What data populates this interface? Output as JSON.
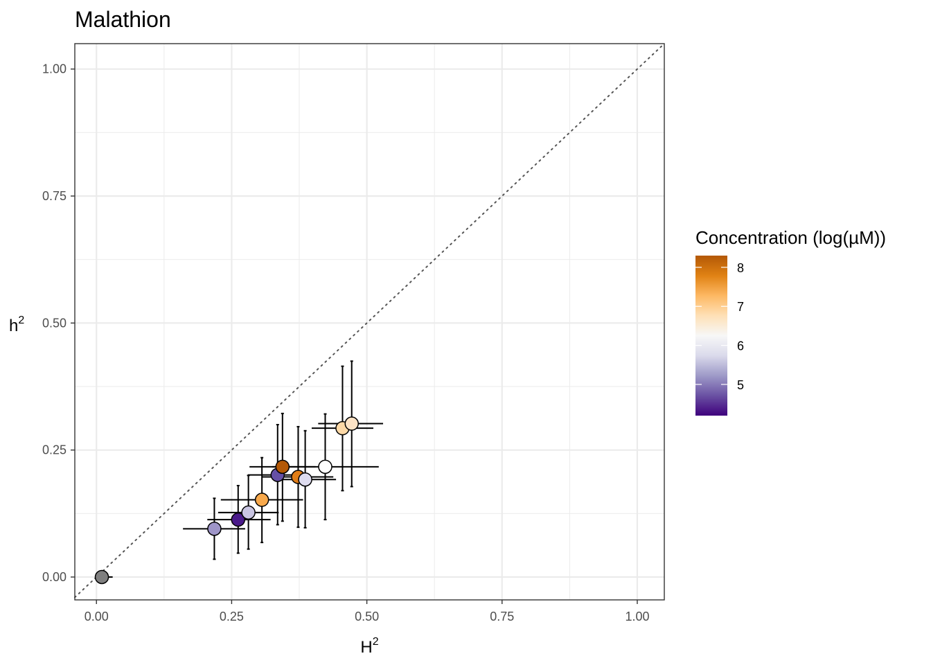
{
  "chart_data": {
    "type": "scatter",
    "title": "Malathion",
    "xlabel": "H",
    "xlabel_sup": "2",
    "ylabel": "h",
    "ylabel_sup": "2",
    "xlim": [
      -0.04,
      1.05
    ],
    "ylim": [
      -0.045,
      1.05
    ],
    "x_ticks": [
      0.0,
      0.25,
      0.5,
      0.75,
      1.0
    ],
    "x_tick_labels": [
      "0.00",
      "0.25",
      "0.50",
      "0.75",
      "1.00"
    ],
    "y_ticks": [
      0.0,
      0.25,
      0.5,
      0.75,
      1.0
    ],
    "y_tick_labels": [
      "0.00",
      "0.25",
      "0.50",
      "0.75",
      "1.00"
    ],
    "grid": true,
    "reference_line": "y = x (dotted)",
    "legend": {
      "title": "Concentration (log(µM))",
      "placement": "right",
      "type": "colorbar",
      "range": [
        4.2,
        8.3
      ],
      "ticks": [
        5,
        6,
        7,
        8
      ],
      "tick_labels": [
        "5",
        "6",
        "7",
        "8"
      ],
      "colors": [
        "#3f007d",
        "#6a51a3",
        "#9e9ac8",
        "#dadaeb",
        "#f7f7f7",
        "#fee0b6",
        "#fdb863",
        "#e08214",
        "#b35806"
      ]
    },
    "points": [
      {
        "H2": 0.01,
        "h2": 0.0,
        "H2_lo": 0.0,
        "H2_hi": 0.03,
        "h2_lo": 0.0,
        "h2_hi": 0.0,
        "conc": null,
        "fill": "#7f7f7f"
      },
      {
        "H2": 0.218,
        "h2": 0.095,
        "H2_lo": 0.16,
        "H2_hi": 0.275,
        "h2_lo": 0.035,
        "h2_hi": 0.155,
        "conc": 5.1,
        "fill": "#9e95c8"
      },
      {
        "H2": 0.262,
        "h2": 0.113,
        "H2_lo": 0.205,
        "H2_hi": 0.322,
        "h2_lo": 0.047,
        "h2_hi": 0.18,
        "conc": 4.4,
        "fill": "#4a1a8a"
      },
      {
        "H2": 0.281,
        "h2": 0.127,
        "H2_lo": 0.225,
        "H2_hi": 0.337,
        "h2_lo": 0.055,
        "h2_hi": 0.2,
        "conc": 5.6,
        "fill": "#c9c5e2"
      },
      {
        "H2": 0.306,
        "h2": 0.152,
        "H2_lo": 0.23,
        "H2_hi": 0.382,
        "h2_lo": 0.068,
        "h2_hi": 0.235,
        "conc": 7.2,
        "fill": "#f8a94c"
      },
      {
        "H2": 0.335,
        "h2": 0.201,
        "H2_lo": 0.28,
        "H2_hi": 0.39,
        "h2_lo": 0.103,
        "h2_hi": 0.3,
        "conc": 4.8,
        "fill": "#6650a6"
      },
      {
        "H2": 0.344,
        "h2": 0.217,
        "H2_lo": 0.283,
        "H2_hi": 0.405,
        "h2_lo": 0.11,
        "h2_hi": 0.322,
        "conc": 8.3,
        "fill": "#b35806"
      },
      {
        "H2": 0.373,
        "h2": 0.197,
        "H2_lo": 0.307,
        "H2_hi": 0.438,
        "h2_lo": 0.098,
        "h2_hi": 0.296,
        "conc": 8.0,
        "fill": "#e07d17"
      },
      {
        "H2": 0.386,
        "h2": 0.192,
        "H2_lo": 0.328,
        "H2_hi": 0.443,
        "h2_lo": 0.097,
        "h2_hi": 0.288,
        "conc": 5.8,
        "fill": "#dedcef"
      },
      {
        "H2": 0.423,
        "h2": 0.217,
        "H2_lo": 0.325,
        "H2_hi": 0.522,
        "h2_lo": 0.113,
        "h2_hi": 0.321,
        "conc": 6.2,
        "fill": "#ffffff"
      },
      {
        "H2": 0.455,
        "h2": 0.293,
        "H2_lo": 0.398,
        "H2_hi": 0.512,
        "h2_lo": 0.17,
        "h2_hi": 0.415,
        "conc": 6.9,
        "fill": "#fdd9a7"
      },
      {
        "H2": 0.472,
        "h2": 0.302,
        "H2_lo": 0.41,
        "H2_hi": 0.53,
        "h2_lo": 0.178,
        "h2_hi": 0.425,
        "conc": 6.7,
        "fill": "#fde3c5"
      }
    ]
  }
}
